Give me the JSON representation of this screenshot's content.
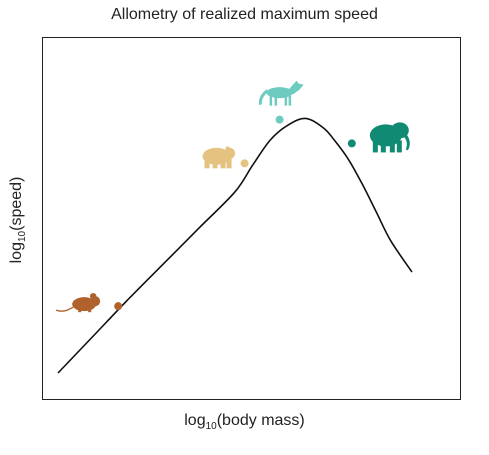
{
  "chart_data": {
    "type": "line",
    "title": "Allometry of realized maximum speed",
    "xlabel": {
      "prefix": "log",
      "subscript": "10",
      "text": "(body mass)"
    },
    "ylabel": {
      "prefix": "log",
      "subscript": "10",
      "text": "(speed)"
    },
    "xlim": [
      0,
      100
    ],
    "ylim": [
      0,
      100
    ],
    "grid": false,
    "ticks": false,
    "series": [
      {
        "x": [
          0,
          10,
          20,
          30,
          40,
          50,
          55,
          60,
          65,
          70,
          75,
          78,
          82,
          86,
          90,
          94,
          100
        ],
        "y": [
          0,
          12.5,
          25,
          37,
          49,
          61,
          70,
          78.5,
          83.5,
          85.7,
          82.5,
          78.5,
          72,
          63.5,
          54,
          44.5,
          34
        ]
      }
    ],
    "points": [
      {
        "animal": "mouse",
        "x": 17,
        "y": 22.5,
        "color": "#b0622d",
        "icon": "mouse-icon"
      },
      {
        "animal": "bear",
        "x": 52.7,
        "y": 70.6,
        "color": "#e4c27f",
        "icon": "bear-icon"
      },
      {
        "animal": "wolf",
        "x": 62.6,
        "y": 85.3,
        "color": "#6ecbbf",
        "icon": "wolf-icon"
      },
      {
        "animal": "elephant",
        "x": 83,
        "y": 77.3,
        "color": "#118a73",
        "icon": "elephant-icon"
      }
    ]
  }
}
